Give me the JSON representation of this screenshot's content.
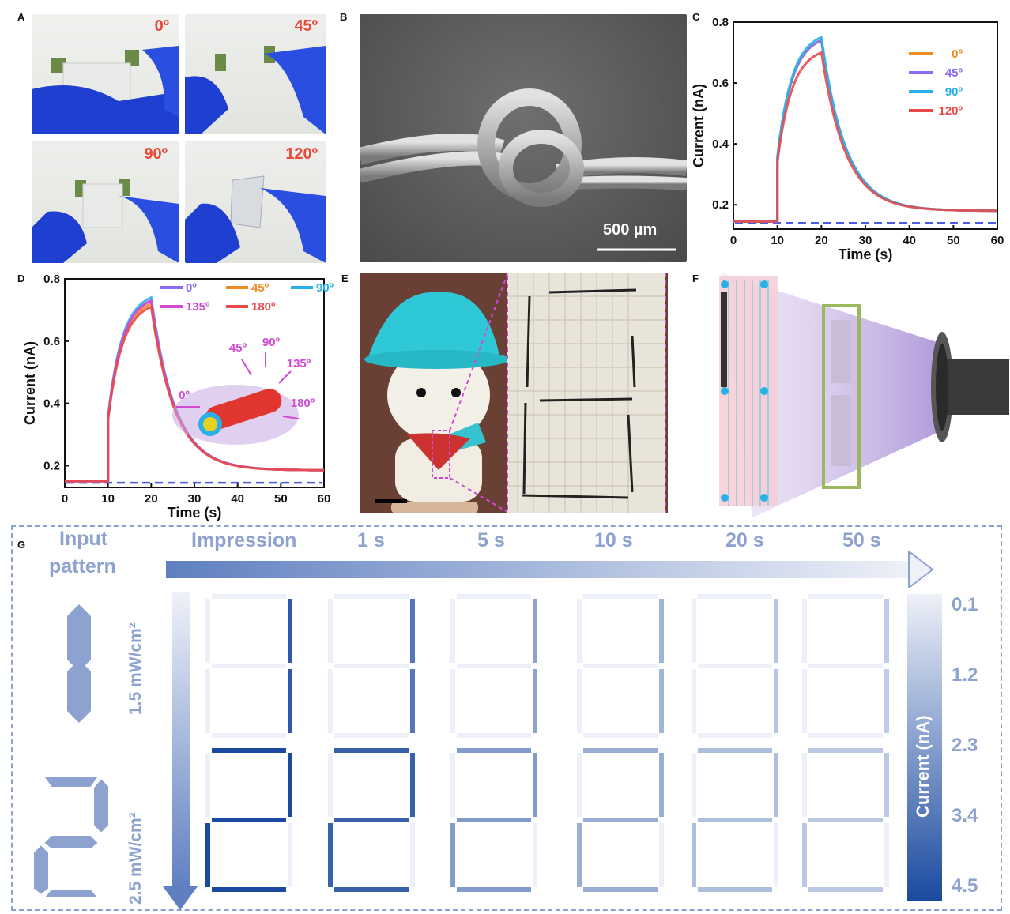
{
  "panels": {
    "a": {
      "label": "A",
      "angles": [
        "0º",
        "45º",
        "90º",
        "120º"
      ]
    },
    "b": {
      "label": "B",
      "scale_bar": "500 µm"
    },
    "c": {
      "label": "C"
    },
    "d": {
      "label": "D",
      "inset_angles": [
        "0º",
        "45º",
        "90º",
        "135º",
        "180º"
      ]
    },
    "e": {
      "label": "E"
    },
    "f": {
      "label": "F"
    },
    "g": {
      "label": "G",
      "input_pattern": [
        "Input",
        "pattern"
      ],
      "time_labels": [
        "Impression",
        "1 s",
        "5 s",
        "10 s",
        "20 s",
        "50 s"
      ],
      "intensities": [
        "1.5 mW/cm²",
        "2.5 mW/cm²"
      ],
      "colorbar_title": "Current (nA)",
      "colorbar_ticks": [
        "0.1",
        "1.2",
        "2.3",
        "3.4",
        "4.5"
      ],
      "digits": [
        {
          "pattern": "1",
          "intensity_index": 0,
          "active_levels": [
            0.9,
            0.72,
            0.45,
            0.35,
            0.25,
            0.2
          ]
        },
        {
          "pattern": "2",
          "intensity_index": 1,
          "active_levels": [
            1.0,
            0.85,
            0.5,
            0.38,
            0.28,
            0.22
          ]
        }
      ],
      "colors": {
        "dark": "#1a4aa0",
        "light": "#e8ecf6",
        "frame": "#8ea2cf"
      }
    }
  },
  "chart_data": [
    {
      "type": "line",
      "panel": "C",
      "xlabel": "Time (s)",
      "ylabel": "Current (nA)",
      "xlim": [
        0,
        60
      ],
      "ylim": [
        0.12,
        0.8
      ],
      "xticks": [
        "0",
        "10",
        "20",
        "30",
        "40",
        "50",
        "60"
      ],
      "yticks": [
        "0.2",
        "0.4",
        "0.6",
        "0.8"
      ],
      "legend_position": "top-right",
      "series": [
        {
          "name": "0º",
          "color": "#f08a24",
          "peak": 0.74
        },
        {
          "name": "45º",
          "color": "#8b6cf0",
          "peak": 0.74
        },
        {
          "name": "90º",
          "color": "#2ab0e8",
          "peak": 0.75
        },
        {
          "name": "120º",
          "color": "#e84a4a",
          "peak": 0.7
        }
      ],
      "baseline": 0.145,
      "on_time": 10,
      "off_time": 20,
      "end_value": 0.18,
      "dark_level": 0.14,
      "dark_color": "#4b5de0"
    },
    {
      "type": "line",
      "panel": "D",
      "xlabel": "Time (s)",
      "ylabel": "Current (nA)",
      "xlim": [
        0,
        60
      ],
      "ylim": [
        0.13,
        0.8
      ],
      "xticks": [
        "0",
        "10",
        "20",
        "30",
        "40",
        "50",
        "60"
      ],
      "yticks": [
        "0.2",
        "0.4",
        "0.6",
        "0.8"
      ],
      "legend_position": "top",
      "series": [
        {
          "name": "0º",
          "color": "#8b6cf0",
          "peak": 0.73
        },
        {
          "name": "45º",
          "color": "#f08a24",
          "peak": 0.72
        },
        {
          "name": "90º",
          "color": "#2ab0e8",
          "peak": 0.74
        },
        {
          "name": "135º",
          "color": "#d04ad6",
          "peak": 0.73
        },
        {
          "name": "180º",
          "color": "#e84a4a",
          "peak": 0.71
        }
      ],
      "baseline": 0.15,
      "on_time": 10,
      "off_time": 20,
      "end_value": 0.185,
      "dark_level": 0.145,
      "dark_color": "#4b5de0"
    }
  ]
}
